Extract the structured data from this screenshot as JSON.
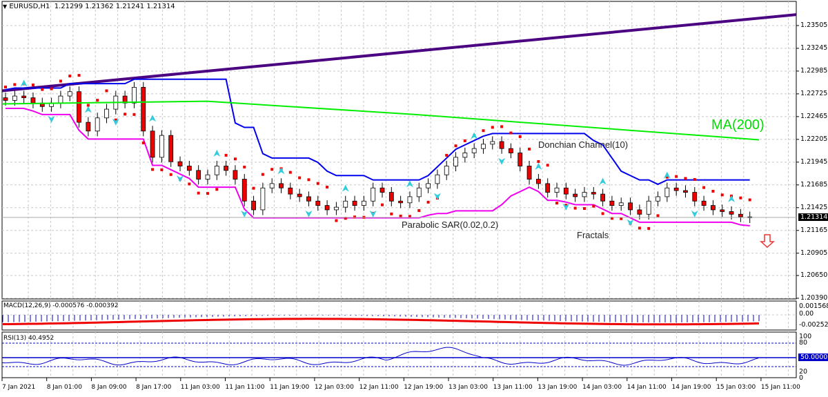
{
  "header": {
    "symbol": "EURUSD,H1",
    "ohlc": "1.21299 1.21362 1.21241 1.21314",
    "dropdown_icon": "triangle-down-icon"
  },
  "annotations": {
    "ma": "MA(200)",
    "donchian": "Donchian Channel(10)",
    "psar": "Parabolic SAR(0.02,0.2)",
    "fractals": "Fractals",
    "signal_icon": "down-arrow-icon"
  },
  "price_axis": {
    "labels": [
      "1.23505",
      "1.23245",
      "1.22985",
      "1.22725",
      "1.22465",
      "1.22205",
      "1.21945",
      "1.21685",
      "1.21425",
      "1.21165",
      "1.20905",
      "1.20650",
      "1.20390"
    ],
    "current_price": "1.21314"
  },
  "macd": {
    "title": "MACD(12,26,9) -0.000576 -0.000392",
    "axis": [
      "0.001568",
      "0.00",
      "-0.002525"
    ]
  },
  "rsi": {
    "title": "RSI(13) 40.4952",
    "axis": [
      "100",
      "80",
      "20",
      "0"
    ],
    "current": "50.0000"
  },
  "time_axis": [
    "7 Jan 2021",
    "8 Jan 01:00",
    "8 Jan 09:00",
    "8 Jan 17:00",
    "11 Jan 03:00",
    "11 Jan 11:00",
    "11 Jan 19:00",
    "12 Jan 03:00",
    "12 Jan 11:00",
    "12 Jan 19:00",
    "13 Jan 03:00",
    "13 Jan 11:00",
    "13 Jan 19:00",
    "14 Jan 03:00",
    "14 Jan 11:00",
    "14 Jan 19:00",
    "15 Jan 03:00",
    "15 Jan 11:00"
  ],
  "colors": {
    "bull": "#ffffff",
    "bear": "#ee0000",
    "ma200": "#00ee00",
    "trendline": "#4b0082",
    "donchian_upper": "#0000ee",
    "donchian_lower": "#ee00ee",
    "psar": "#ee0000",
    "fractal": "#33ccdd",
    "macd_hist": "#0000cc",
    "macd_signal": "#ee0000",
    "rsi": "#0000cc"
  },
  "chart_data": [
    {
      "type": "candlestick",
      "title": "EURUSD,H1 1.21299 1.21362 1.21241 1.21314",
      "ylim": [
        1.2039,
        1.2365
      ],
      "ticks": [
        1.23505,
        1.23245,
        1.22985,
        1.22725,
        1.22465,
        1.22205,
        1.21945,
        1.21685,
        1.21425,
        1.21165,
        1.20905,
        1.2065,
        1.2039
      ],
      "x_ticks": [
        "7 Jan 2021",
        "8 Jan 01:00",
        "8 Jan 09:00",
        "8 Jan 17:00",
        "11 Jan 03:00",
        "11 Jan 11:00",
        "11 Jan 19:00",
        "12 Jan 03:00",
        "12 Jan 11:00",
        "12 Jan 19:00",
        "13 Jan 03:00",
        "13 Jan 11:00",
        "13 Jan 19:00",
        "14 Jan 03:00",
        "14 Jan 11:00",
        "14 Jan 19:00",
        "15 Jan 03:00",
        "15 Jan 11:00"
      ],
      "close_path": [
        1.2265,
        1.227,
        1.2268,
        1.2262,
        1.2258,
        1.2262,
        1.227,
        1.2275,
        1.224,
        1.223,
        1.2245,
        1.2255,
        1.227,
        1.2262,
        1.228,
        1.223,
        1.22,
        1.2225,
        1.2195,
        1.219,
        1.2185,
        1.2175,
        1.218,
        1.219,
        1.2185,
        1.2175,
        1.215,
        1.214,
        1.2165,
        1.217,
        1.2165,
        1.2158,
        1.2155,
        1.215,
        1.2145,
        1.214,
        1.2143,
        1.215,
        1.2145,
        1.215,
        1.2165,
        1.216,
        1.215,
        1.2148,
        1.2155,
        1.2165,
        1.217,
        1.218,
        1.219,
        1.22,
        1.2205,
        1.221,
        1.2215,
        1.2218,
        1.221,
        1.2205,
        1.219,
        1.2175,
        1.217,
        1.216,
        1.2165,
        1.2158,
        1.2155,
        1.216,
        1.2158,
        1.215,
        1.2145,
        1.2148,
        1.214,
        1.2135,
        1.215,
        1.2155,
        1.2165,
        1.2162,
        1.216,
        1.215,
        1.2145,
        1.214,
        1.2138,
        1.2135,
        1.2132,
        1.2131
      ],
      "indicators": {
        "ma200": {
          "label": "MA(200)",
          "start": 1.2261,
          "end": 1.222
        },
        "trendline": {
          "start": 1.2276,
          "end": 1.2363
        },
        "donchian": {
          "label": "Donchian Channel(10)"
        },
        "parabolic_sar": {
          "label": "Parabolic SAR(0.02,0.2)"
        },
        "fractals": {
          "label": "Fractals"
        }
      },
      "last_price": 1.21314
    },
    {
      "type": "bar",
      "title": "MACD(12,26,9) -0.000576 -0.000392",
      "ylim": [
        -0.002525,
        0.001568
      ],
      "macd": -0.000576,
      "signal": -0.000392
    },
    {
      "type": "line",
      "title": "RSI(13) 40.4952",
      "ylim": [
        0,
        100
      ],
      "levels": [
        80,
        50,
        20
      ],
      "last": 40.4952
    }
  ]
}
